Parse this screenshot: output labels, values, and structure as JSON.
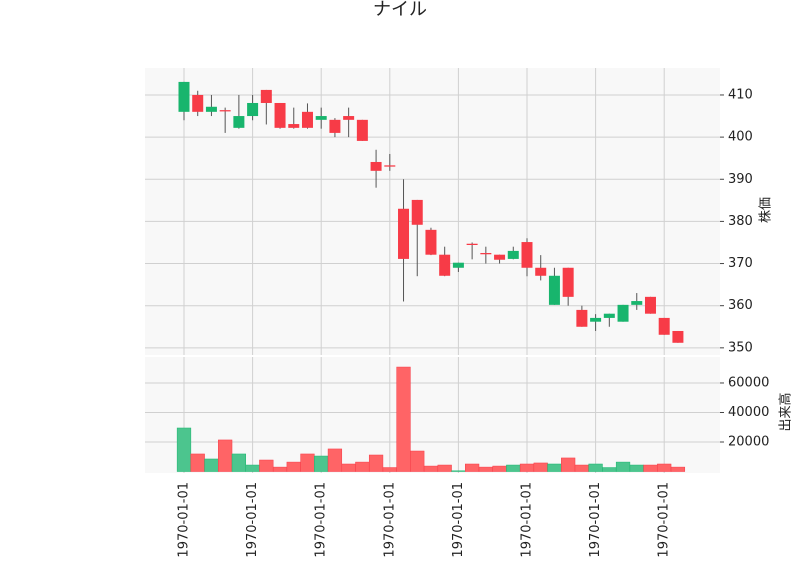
{
  "chart_data": {
    "type": "candlestick",
    "title": "ナイル",
    "ylabel": "株価",
    "volume_label": "出来高",
    "up_color": "#18b56d",
    "down_color": "#f73b47",
    "volume_up_color": "#4cc58e",
    "volume_down_color": "#ff6466",
    "grid": true,
    "categories": [
      "1970-01-01",
      null,
      null,
      null,
      null,
      "1970-01-01",
      null,
      null,
      null,
      null,
      "1970-01-01",
      null,
      null,
      null,
      null,
      "1970-01-01",
      null,
      null,
      null,
      null,
      "1970-01-01",
      null,
      null,
      null,
      null,
      "1970-01-01",
      null,
      null,
      null,
      null,
      "1970-01-01",
      null,
      null,
      null,
      null,
      "1970-01-01",
      null
    ],
    "open": [
      406,
      410,
      406,
      406.4,
      402.2,
      405,
      411.2,
      408.1,
      403.1,
      406,
      404.1,
      404.1,
      405,
      404.1,
      394.1,
      393.3,
      383,
      385.1,
      378,
      372.1,
      369,
      374.7,
      372.5,
      372.1,
      371.1,
      375.1,
      369,
      360.2,
      369,
      359,
      356.2,
      357.1,
      356.2,
      360.2,
      362.1,
      357.1,
      354
    ],
    "high": [
      413.1,
      411,
      410,
      407,
      410,
      410,
      411.2,
      408.1,
      407,
      408,
      407,
      404.5,
      407,
      404.1,
      397,
      396,
      390,
      385.1,
      378.5,
      374,
      370.2,
      375,
      374,
      372.1,
      374,
      376,
      372,
      369,
      369,
      360,
      358,
      358.1,
      360.2,
      363,
      362.1,
      357.1,
      354
    ],
    "low": [
      404,
      405,
      405,
      401,
      402,
      404,
      403,
      402,
      402,
      402,
      402,
      400,
      400,
      399.1,
      388,
      392,
      361,
      367,
      372,
      367,
      368,
      371,
      370,
      370,
      371,
      367,
      366,
      360.2,
      360,
      355,
      354,
      355,
      356.2,
      359,
      358.1,
      353.1,
      351.2
    ],
    "close": [
      413.1,
      406,
      407.2,
      406.1,
      405,
      408.1,
      408.1,
      402.2,
      402.2,
      402.2,
      405,
      401,
      404.1,
      399.1,
      392,
      393,
      371.1,
      379.2,
      372.1,
      367.1,
      370.2,
      374.4,
      372.2,
      370.9,
      373,
      369,
      367.1,
      367.1,
      362.1,
      355,
      357.1,
      358.1,
      360.2,
      361.1,
      358.1,
      353.1,
      351.2
    ],
    "volume": [
      29500,
      11900,
      8500,
      21400,
      11900,
      4400,
      7800,
      3000,
      6400,
      11900,
      10500,
      15300,
      5100,
      6400,
      11200,
      2700,
      70800,
      13900,
      3700,
      4400,
      500,
      5100,
      3000,
      3700,
      4400,
      5100,
      5800,
      5100,
      9200,
      4400,
      5100,
      2700,
      6400,
      4400,
      4400,
      5100,
      3000
    ],
    "ylim": [
      348.3,
      416.4
    ],
    "yticks": [
      350,
      360,
      370,
      380,
      390,
      400,
      410
    ],
    "volume_ylim": [
      -1000,
      77600
    ],
    "volume_yticks": [
      20000,
      40000,
      60000
    ]
  }
}
